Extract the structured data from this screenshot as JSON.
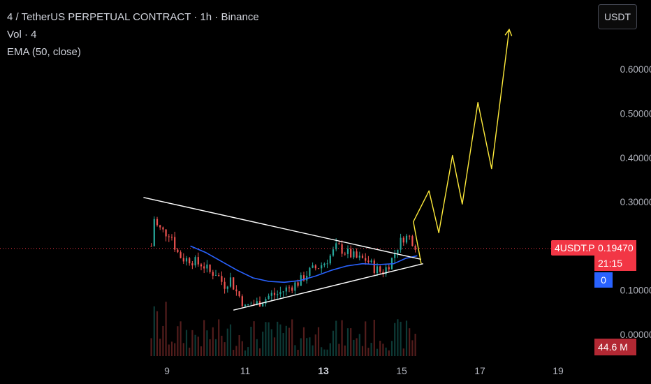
{
  "header": {
    "title": "4 / TetherUS PERPETUAL CONTRACT · 1h · Binance",
    "volume_label": "Vol · 4",
    "ema_label": "EMA (50, close)",
    "currency": "USDT"
  },
  "badges": {
    "symbol": "4USDT.P",
    "price": "0.19470",
    "countdown": "21:15",
    "volume_value": "0",
    "volume_total": "44.6 M"
  },
  "colors": {
    "up": "#26a69a",
    "down": "#ef5350",
    "ema": "#2962ff",
    "projection": "#ffeb3b",
    "trendline": "#ffffff",
    "price_line": "#f23645"
  },
  "chart_data": {
    "type": "candlestick",
    "y_ticks": [
      "0.60000",
      "0.50000",
      "0.40000",
      "0.30000",
      "0.10000",
      "0.00000"
    ],
    "y_tick_values": [
      0.6,
      0.5,
      0.4,
      0.3,
      0.1,
      0.0
    ],
    "x_ticks": [
      {
        "label": "9",
        "day": 9,
        "bold": false
      },
      {
        "label": "11",
        "day": 11,
        "bold": false
      },
      {
        "label": "13",
        "day": 13,
        "bold": true
      },
      {
        "label": "15",
        "day": 15,
        "bold": false
      },
      {
        "label": "17",
        "day": 17,
        "bold": false
      },
      {
        "label": "19",
        "day": 19,
        "bold": false
      }
    ],
    "ylim": [
      -0.03,
      0.7
    ],
    "xlim": [
      8.1,
      19.6
    ],
    "current_price": 0.1947,
    "price_path": [
      [
        8.6,
        0.2
      ],
      [
        8.62,
        0.29
      ],
      [
        8.7,
        0.25
      ],
      [
        8.8,
        0.24
      ],
      [
        8.95,
        0.23
      ],
      [
        9.1,
        0.23
      ],
      [
        9.2,
        0.2
      ],
      [
        9.3,
        0.18
      ],
      [
        9.45,
        0.17
      ],
      [
        9.6,
        0.17
      ],
      [
        9.8,
        0.16
      ],
      [
        9.9,
        0.16
      ],
      [
        10.0,
        0.15
      ],
      [
        10.1,
        0.14
      ],
      [
        10.25,
        0.14
      ],
      [
        10.4,
        0.12
      ],
      [
        10.5,
        0.11
      ],
      [
        10.6,
        0.13
      ],
      [
        10.75,
        0.1
      ],
      [
        10.9,
        0.08
      ],
      [
        11.0,
        0.06
      ],
      [
        11.15,
        0.07
      ],
      [
        11.3,
        0.07
      ],
      [
        11.5,
        0.08
      ],
      [
        11.65,
        0.09
      ],
      [
        11.8,
        0.09
      ],
      [
        12.0,
        0.1
      ],
      [
        12.2,
        0.11
      ],
      [
        12.4,
        0.12
      ],
      [
        12.6,
        0.14
      ],
      [
        12.8,
        0.15
      ],
      [
        13.0,
        0.16
      ],
      [
        13.2,
        0.18
      ],
      [
        13.35,
        0.2
      ],
      [
        13.5,
        0.19
      ],
      [
        13.7,
        0.18
      ],
      [
        13.9,
        0.17
      ],
      [
        14.1,
        0.17
      ],
      [
        14.3,
        0.15
      ],
      [
        14.5,
        0.14
      ],
      [
        14.6,
        0.15
      ],
      [
        14.75,
        0.17
      ],
      [
        14.9,
        0.2
      ],
      [
        15.05,
        0.22
      ],
      [
        15.2,
        0.22
      ],
      [
        15.3,
        0.21
      ],
      [
        15.4,
        0.195
      ]
    ],
    "ema_path": [
      [
        9.6,
        0.2
      ],
      [
        10.0,
        0.185
      ],
      [
        10.4,
        0.165
      ],
      [
        10.8,
        0.145
      ],
      [
        11.2,
        0.128
      ],
      [
        11.6,
        0.12
      ],
      [
        12.0,
        0.118
      ],
      [
        12.4,
        0.122
      ],
      [
        12.8,
        0.132
      ],
      [
        13.2,
        0.145
      ],
      [
        13.6,
        0.155
      ],
      [
        14.0,
        0.16
      ],
      [
        14.4,
        0.158
      ],
      [
        14.8,
        0.16
      ],
      [
        15.1,
        0.172
      ],
      [
        15.4,
        0.178
      ]
    ],
    "trendline_upper": [
      [
        8.4,
        0.31
      ],
      [
        15.5,
        0.17
      ]
    ],
    "trendline_lower": [
      [
        10.7,
        0.055
      ],
      [
        15.55,
        0.16
      ]
    ],
    "projection_path": [
      [
        15.5,
        0.16
      ],
      [
        15.3,
        0.255
      ],
      [
        15.7,
        0.325
      ],
      [
        15.95,
        0.23
      ],
      [
        16.3,
        0.405
      ],
      [
        16.55,
        0.295
      ],
      [
        16.95,
        0.525
      ],
      [
        17.3,
        0.375
      ],
      [
        17.75,
        0.69
      ]
    ]
  }
}
